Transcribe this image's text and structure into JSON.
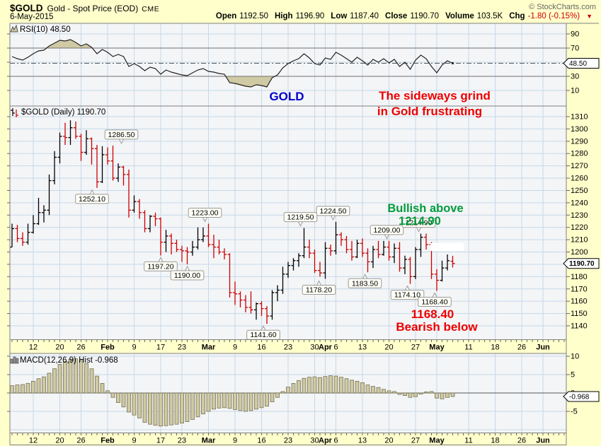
{
  "header": {
    "symbol": "$GOLD",
    "description": "Gold - Spot Price (EOD)",
    "exchange": "CME",
    "copyright": "© StockCharts.com",
    "date": "6-May-2015",
    "quote": [
      {
        "label": "Open",
        "value": "1192.50"
      },
      {
        "label": "High",
        "value": "1196.90"
      },
      {
        "label": "Low",
        "value": "1187.40"
      },
      {
        "label": "Close",
        "value": "1190.70"
      },
      {
        "label": "Volume",
        "value": "103.5K"
      },
      {
        "label": "Chg",
        "value": "-1.80 (-0.15%)",
        "direction": "down"
      }
    ]
  },
  "colors": {
    "background": "#FFFFCC",
    "plot_bg": "#F4F5F7",
    "grid": "#C5D9EA",
    "frame": "#808080",
    "tick": "#666666",
    "bar_up": "#000000",
    "bar_down": "#CC0000",
    "rsi_line": "#222222",
    "band_line": "#707070",
    "dash_line": "#555555",
    "indicator_fill": "#CFC9A4",
    "indicator_stroke": "#74724E",
    "annotation_blue": "#0000CC",
    "annotation_red": "#EE0000",
    "annotation_green": "#009B3C",
    "callout_bg": "#FFFFF6",
    "callout_border": "#999999",
    "value_box_bg": "#FFFFFF",
    "value_box_border": "#000000"
  },
  "x_axis": {
    "labels": [
      {
        "text": "12",
        "index": 4
      },
      {
        "text": "20",
        "index": 9
      },
      {
        "text": "26",
        "index": 13
      },
      {
        "text": "Feb",
        "index": 18,
        "bold": true
      },
      {
        "text": "9",
        "index": 23
      },
      {
        "text": "17",
        "index": 28
      },
      {
        "text": "23",
        "index": 32
      },
      {
        "text": "Mar",
        "index": 37,
        "bold": true
      },
      {
        "text": "9",
        "index": 42
      },
      {
        "text": "16",
        "index": 47
      },
      {
        "text": "23",
        "index": 52
      },
      {
        "text": "30",
        "index": 57
      },
      {
        "text": "Apr",
        "index": 59,
        "bold": true
      },
      {
        "text": "6",
        "index": 61
      },
      {
        "text": "13",
        "index": 66
      },
      {
        "text": "20",
        "index": 71
      },
      {
        "text": "27",
        "index": 76
      },
      {
        "text": "May",
        "index": 80,
        "bold": true
      },
      {
        "text": "11",
        "index": 86
      },
      {
        "text": "18",
        "index": 91
      },
      {
        "text": "26",
        "index": 96
      },
      {
        "text": "Jun",
        "index": 100,
        "bold": true
      }
    ]
  },
  "chart_data": [
    {
      "panel": "rsi",
      "type": "line",
      "label": "RSI(10) 48.50",
      "current_value": 48.5,
      "current_label": "48.50",
      "ylim": [
        0,
        100
      ],
      "yticks": [
        90,
        70,
        50,
        30,
        10
      ],
      "overbought": 70,
      "oversold": 30,
      "values": [
        58,
        55,
        53,
        57,
        62,
        66,
        67,
        73,
        77,
        81,
        80,
        82,
        78,
        73,
        76,
        71,
        62,
        68,
        64,
        58,
        61,
        58,
        44,
        48,
        44,
        38,
        43,
        41,
        33,
        39,
        36,
        34,
        32,
        31,
        35,
        39,
        41,
        37,
        36,
        34,
        33,
        21,
        20,
        18,
        16,
        15,
        18,
        17,
        15,
        28,
        32,
        42,
        48,
        52,
        55,
        62,
        56,
        48,
        46,
        56,
        54,
        64,
        60,
        55,
        50,
        57,
        52,
        46,
        54,
        50,
        55,
        49,
        54,
        44,
        50,
        40,
        53,
        60,
        55,
        44,
        35,
        46,
        52,
        48.5
      ],
      "annotations": [
        {
          "text": "GOLD",
          "x": 405,
          "y": 142,
          "color_key": "annotation_blue",
          "size": 17
        },
        {
          "text": "The sideways grind",
          "x": 614,
          "y": 141,
          "color_key": "annotation_red",
          "size": 17
        },
        {
          "text": "in Gold frustrating",
          "x": 607,
          "y": 163,
          "color_key": "annotation_red",
          "size": 17
        }
      ]
    },
    {
      "panel": "price",
      "type": "ohlc",
      "label": "$GOLD (Daily) 1190.70",
      "current_value": 1190.7,
      "current_label": "1190.70",
      "ylim": [
        1135,
        1313
      ],
      "ytick_min": 1140,
      "ytick_max": 1310,
      "ytick_step": 10,
      "dates": [
        "Jan 6",
        "Jan 7",
        "Jan 8",
        "Jan 9",
        "Jan 12",
        "Jan 13",
        "Jan 14",
        "Jan 15",
        "Jan 16",
        "Jan 20",
        "Jan 21",
        "Jan 22",
        "Jan 23",
        "Jan 26",
        "Jan 27",
        "Jan 28",
        "Jan 29",
        "Jan 30",
        "Feb 2",
        "Feb 3",
        "Feb 4",
        "Feb 5",
        "Feb 6",
        "Feb 9",
        "Feb 10",
        "Feb 11",
        "Feb 12",
        "Feb 13",
        "Feb 17",
        "Feb 18",
        "Feb 19",
        "Feb 20",
        "Feb 23",
        "Feb 24",
        "Feb 25",
        "Feb 26",
        "Feb 27",
        "Mar 2",
        "Mar 3",
        "Mar 4",
        "Mar 5",
        "Mar 6",
        "Mar 9",
        "Mar 10",
        "Mar 11",
        "Mar 12",
        "Mar 13",
        "Mar 16",
        "Mar 17",
        "Mar 18",
        "Mar 19",
        "Mar 20",
        "Mar 23",
        "Mar 24",
        "Mar 25",
        "Mar 26",
        "Mar 27",
        "Mar 30",
        "Mar 31",
        "Apr 1",
        "Apr 2",
        "Apr 6",
        "Apr 7",
        "Apr 8",
        "Apr 9",
        "Apr 10",
        "Apr 13",
        "Apr 14",
        "Apr 15",
        "Apr 16",
        "Apr 17",
        "Apr 20",
        "Apr 21",
        "Apr 22",
        "Apr 23",
        "Apr 24",
        "Apr 27",
        "Apr 28",
        "Apr 29",
        "Apr 30",
        "May 1",
        "May 4",
        "May 5",
        "May 6"
      ],
      "ohlc": [
        [
          1204,
          1223,
          1204,
          1219
        ],
        [
          1219,
          1222,
          1208,
          1211
        ],
        [
          1211,
          1216,
          1205,
          1208
        ],
        [
          1208,
          1223,
          1206,
          1216
        ],
        [
          1216,
          1230,
          1215,
          1223
        ],
        [
          1223,
          1244,
          1222,
          1232
        ],
        [
          1232,
          1238,
          1224,
          1234
        ],
        [
          1234,
          1263,
          1230,
          1258
        ],
        [
          1258,
          1282,
          1255,
          1277
        ],
        [
          1277,
          1297,
          1272,
          1294
        ],
        [
          1294,
          1305,
          1287,
          1293
        ],
        [
          1293,
          1307,
          1287,
          1301
        ],
        [
          1301,
          1306,
          1292,
          1294
        ],
        [
          1294,
          1296,
          1274,
          1281
        ],
        [
          1281,
          1299,
          1279,
          1292
        ],
        [
          1292,
          1293,
          1271,
          1284
        ],
        [
          1284,
          1287,
          1252.1,
          1257
        ],
        [
          1257,
          1286,
          1256,
          1279
        ],
        [
          1279,
          1285,
          1271,
          1274
        ],
        [
          1274,
          1286.5,
          1258,
          1260
        ],
        [
          1260,
          1272,
          1257,
          1269
        ],
        [
          1269,
          1270,
          1254,
          1263
        ],
        [
          1263,
          1267,
          1228,
          1234
        ],
        [
          1234,
          1246,
          1232,
          1241
        ],
        [
          1241,
          1243,
          1227,
          1232
        ],
        [
          1232,
          1234,
          1216,
          1219
        ],
        [
          1219,
          1230,
          1216,
          1229
        ],
        [
          1229,
          1232,
          1221,
          1227
        ],
        [
          1227,
          1228,
          1197.2,
          1208
        ],
        [
          1208,
          1218,
          1200,
          1213
        ],
        [
          1213,
          1215,
          1198,
          1207
        ],
        [
          1207,
          1210,
          1200,
          1202
        ],
        [
          1202,
          1205,
          1192,
          1201
        ],
        [
          1201,
          1204,
          1190,
          1200
        ],
        [
          1200,
          1209,
          1197,
          1204
        ],
        [
          1204,
          1220,
          1202,
          1210
        ],
        [
          1210,
          1220,
          1208,
          1213
        ],
        [
          1213,
          1223,
          1204,
          1206
        ],
        [
          1206,
          1214,
          1195,
          1204
        ],
        [
          1204,
          1210,
          1198,
          1200
        ],
        [
          1200,
          1203,
          1194,
          1198
        ],
        [
          1198,
          1199,
          1163,
          1167
        ],
        [
          1167,
          1176,
          1157,
          1166
        ],
        [
          1166,
          1168,
          1155,
          1161
        ],
        [
          1161,
          1165,
          1151,
          1155
        ],
        [
          1155,
          1168,
          1150,
          1153
        ],
        [
          1153,
          1159,
          1145,
          1158
        ],
        [
          1158,
          1160,
          1148,
          1154
        ],
        [
          1154,
          1156,
          1141.6,
          1148
        ],
        [
          1148,
          1169,
          1145,
          1167
        ],
        [
          1167,
          1173,
          1160,
          1169
        ],
        [
          1169,
          1188,
          1166,
          1182
        ],
        [
          1182,
          1192,
          1179,
          1189
        ],
        [
          1189,
          1195,
          1185,
          1193
        ],
        [
          1193,
          1199,
          1188,
          1197
        ],
        [
          1197,
          1219.5,
          1195,
          1204
        ],
        [
          1204,
          1210,
          1195,
          1199
        ],
        [
          1199,
          1202,
          1183,
          1185
        ],
        [
          1185,
          1192,
          1180,
          1183
        ],
        [
          1183,
          1208,
          1178.2,
          1203
        ],
        [
          1203,
          1206,
          1197,
          1201
        ],
        [
          1201,
          1224.5,
          1198,
          1214
        ],
        [
          1214,
          1216,
          1205,
          1210
        ],
        [
          1210,
          1213,
          1199,
          1202
        ],
        [
          1202,
          1209,
          1193,
          1196
        ],
        [
          1196,
          1210,
          1195,
          1207
        ],
        [
          1207,
          1211,
          1196,
          1199
        ],
        [
          1199,
          1203,
          1183.5,
          1192
        ],
        [
          1192,
          1205,
          1187,
          1202
        ],
        [
          1202,
          1209,
          1195,
          1198
        ],
        [
          1198,
          1209,
          1197,
          1204
        ],
        [
          1204,
          1209,
          1193,
          1196
        ],
        [
          1196,
          1207,
          1191,
          1203
        ],
        [
          1203,
          1208,
          1184,
          1187
        ],
        [
          1187,
          1197,
          1182,
          1194
        ],
        [
          1194,
          1196,
          1174.1,
          1180
        ],
        [
          1180,
          1204,
          1178,
          1202
        ],
        [
          1202,
          1214.9,
          1196,
          1212
        ],
        [
          1212,
          1215,
          1202,
          1206
        ],
        [
          1206,
          1208,
          1178,
          1182
        ],
        [
          1182,
          1186,
          1168.4,
          1177
        ],
        [
          1177,
          1193,
          1176,
          1187
        ],
        [
          1187,
          1198,
          1185,
          1193
        ],
        [
          1192.5,
          1196.9,
          1187.4,
          1190.7
        ]
      ],
      "callouts": [
        {
          "text": "1286.50",
          "index": 19,
          "side": "high",
          "dx": 12
        },
        {
          "text": "1252.10",
          "index": 16,
          "side": "low",
          "dx": -7
        },
        {
          "text": "1197.20",
          "index": 28,
          "side": "low",
          "dx": 0
        },
        {
          "text": "1190.00",
          "index": 33,
          "side": "low",
          "dx": 0
        },
        {
          "text": "1223.00",
          "index": 37,
          "side": "high",
          "dx": -5
        },
        {
          "text": "1141.60",
          "index": 48,
          "side": "low",
          "dx": -5
        },
        {
          "text": "1219.50",
          "index": 55,
          "side": "high",
          "dx": -5
        },
        {
          "text": "1178.20",
          "index": 59,
          "side": "low",
          "dx": -9
        },
        {
          "text": "1224.50",
          "index": 61,
          "side": "high",
          "dx": -4
        },
        {
          "text": "1183.50",
          "index": 67,
          "side": "low",
          "dx": -4
        },
        {
          "text": "1209.00",
          "index": 71,
          "side": "high",
          "dx": -3
        },
        {
          "text": "1174.10",
          "index": 75,
          "side": "low",
          "dx": -4
        },
        {
          "text": "1214.90",
          "index": 77,
          "side": "high",
          "dx": -3
        },
        {
          "text": "1168.40",
          "index": 80,
          "side": "low",
          "dx": -3
        }
      ],
      "annotations": [
        {
          "text": "Bullish above",
          "x": 601,
          "y": 300,
          "color_key": "annotation_green",
          "size": 16.5
        },
        {
          "text": "1214.90",
          "x": 593,
          "y": 318,
          "color_key": "annotation_green",
          "size": 16.5
        },
        {
          "text": "1168.40",
          "x": 611,
          "y": 450,
          "color_key": "annotation_red",
          "size": 17
        },
        {
          "text": "Bearish below",
          "x": 617,
          "y": 468,
          "color_key": "annotation_red",
          "size": 17
        }
      ],
      "highlight_box": {
        "x": 608,
        "y": 344,
        "w": 47,
        "h": 11
      }
    },
    {
      "panel": "macd",
      "type": "bar",
      "label": "MACD(12,26,9) Hist -0.968",
      "current_value": -0.968,
      "current_label": "-0.968",
      "yticks": [
        10,
        5,
        0,
        -5
      ],
      "values": [
        2.0,
        2.2,
        2.3,
        2.6,
        3.2,
        3.9,
        4.4,
        5.4,
        6.6,
        7.8,
        8.6,
        9.2,
        9.3,
        8.8,
        8.0,
        6.6,
        4.6,
        2.6,
        0.6,
        -1.2,
        -2.6,
        -3.8,
        -5.2,
        -6.0,
        -6.8,
        -8.0,
        -8.5,
        -8.8,
        -9.0,
        -8.9,
        -8.7,
        -8.5,
        -8.2,
        -7.8,
        -7.2,
        -6.5,
        -5.7,
        -5.0,
        -4.4,
        -4.1,
        -4.0,
        -4.2,
        -4.5,
        -4.8,
        -5.0,
        -4.8,
        -4.4,
        -4.0,
        -3.6,
        -2.4,
        -1.2,
        0.4,
        1.6,
        2.6,
        3.4,
        4.0,
        4.3,
        4.4,
        4.2,
        4.5,
        4.7,
        4.6,
        4.3,
        3.9,
        3.5,
        3.2,
        2.8,
        2.2,
        1.8,
        1.5,
        1.0,
        0.6,
        0.4,
        -0.4,
        -0.7,
        -1.2,
        -1.0,
        -0.3,
        0.3,
        0.4,
        -1.4,
        -1.6,
        -1.2,
        -0.968
      ]
    }
  ]
}
